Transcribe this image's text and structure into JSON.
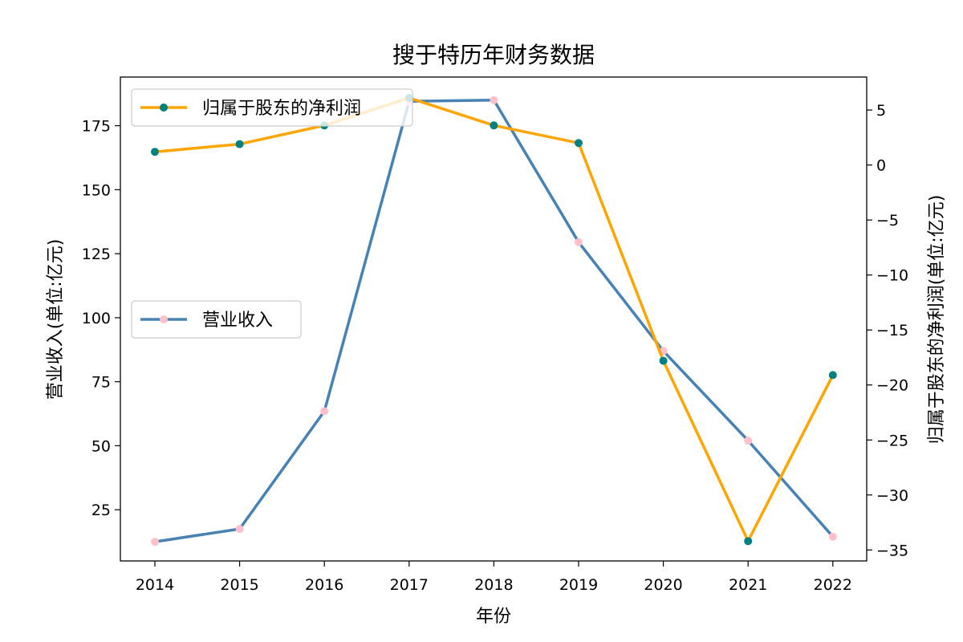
{
  "chart_data": {
    "type": "line",
    "title": "搜于特历年财务数据",
    "xlabel": "年份",
    "ylabel_left": "营业收入(单位:亿元)",
    "ylabel_right": "归属于股东的净利润(单位:亿元)",
    "categories": [
      "2014",
      "2015",
      "2016",
      "2017",
      "2018",
      "2019",
      "2020",
      "2021",
      "2022"
    ],
    "ylim_left": [
      5,
      194
    ],
    "ylim_right": [
      -36,
      8
    ],
    "yticks_left": [
      "25",
      "50",
      "75",
      "100",
      "125",
      "150",
      "175"
    ],
    "yticks_right": [
      "5",
      "0",
      "−5",
      "−10",
      "−15",
      "−20",
      "−25",
      "−30",
      "−35"
    ],
    "yticks_left_values": [
      25,
      50,
      75,
      100,
      125,
      150,
      175
    ],
    "yticks_right_values": [
      5,
      0,
      -5,
      -10,
      -15,
      -20,
      -25,
      -30,
      -35
    ],
    "grid": false,
    "series": [
      {
        "name": "归属于股东的净利润",
        "axis": "right",
        "line_color": "#FFA500",
        "marker_color": "#008080",
        "legend_position": "top-left",
        "values": [
          1.2,
          1.9,
          3.6,
          6.1,
          3.6,
          2.0,
          -17.8,
          -34.2,
          -19.1
        ]
      },
      {
        "name": "营业收入",
        "axis": "left",
        "line_color": "#4682B4",
        "marker_color": "#FFC0CB",
        "legend_position": "center-left",
        "values": [
          12.5,
          17.5,
          63.5,
          184.5,
          185.0,
          129.5,
          87.0,
          52.0,
          14.5
        ]
      }
    ]
  }
}
